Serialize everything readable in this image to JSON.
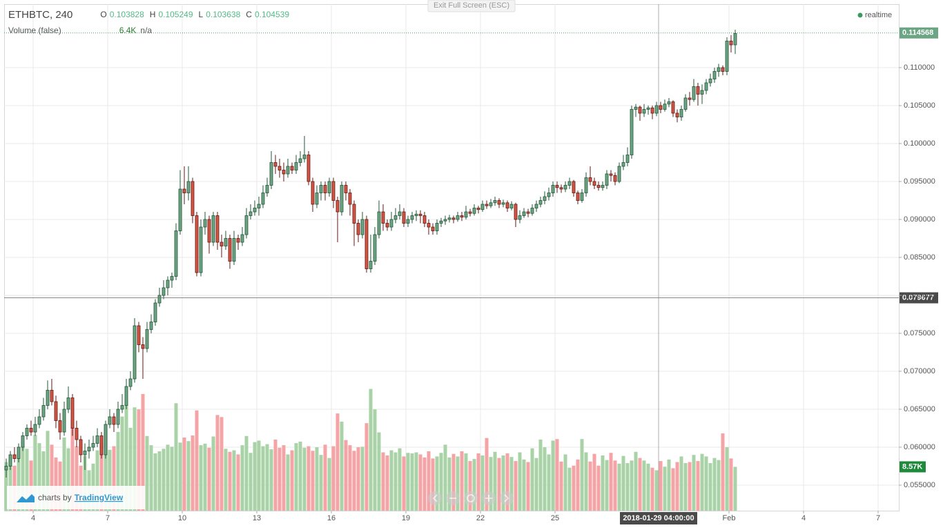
{
  "chart_data": {
    "type": "candlestick",
    "header": {
      "symbol": "ETHBTC, 240",
      "o_label": "O",
      "o": 0.103828,
      "h_label": "H",
      "h": 0.105249,
      "l_label": "L",
      "l": 0.103638,
      "c_label": "C",
      "c": 0.104539,
      "volume_title": "Volume (false)",
      "volume_value": "6.4K",
      "volume_extra": "n/a",
      "realtime": "realtime",
      "exit": "Exit Full Screen (ESC)",
      "brand_prefix": "charts by",
      "brand": "TradingView"
    },
    "xlim": [
      -0.5,
      215.5
    ],
    "xticks": [
      {
        "value": 6.5,
        "label": "4"
      },
      {
        "value": 24.5,
        "label": "7"
      },
      {
        "value": 42.5,
        "label": "10"
      },
      {
        "value": 60.5,
        "label": "13"
      },
      {
        "value": 78.5,
        "label": "16"
      },
      {
        "value": 96.5,
        "label": "19"
      },
      {
        "value": 114.5,
        "label": "22"
      },
      {
        "value": 132.5,
        "label": "25"
      },
      {
        "value": 174.5,
        "label": "Feb"
      },
      {
        "value": 192.5,
        "label": "4"
      },
      {
        "value": 210.5,
        "label": "7"
      }
    ],
    "ylim": [
      0.051636,
      0.118364
    ],
    "yticks": [
      {
        "value": 0.055,
        "label": "0.055000"
      },
      {
        "value": 0.06,
        "label": "0.060000"
      },
      {
        "value": 0.065,
        "label": "0.065000"
      },
      {
        "value": 0.07,
        "label": "0.070000"
      },
      {
        "value": 0.075,
        "label": "0.075000"
      },
      {
        "value": 0.08,
        "label": "0.080000"
      },
      {
        "value": 0.085,
        "label": "0.085000"
      },
      {
        "value": 0.09,
        "label": "0.090000"
      },
      {
        "value": 0.095,
        "label": "0.095000"
      },
      {
        "value": 0.1,
        "label": "0.100000"
      },
      {
        "value": 0.105,
        "label": "0.105000"
      },
      {
        "value": 0.11,
        "label": "0.110000"
      }
    ],
    "y2lim": [
      0,
      99000
    ],
    "grid": true,
    "colors": {
      "up": "#6ba583",
      "up_border": "#225437",
      "down": "#d75442",
      "down_border": "#5b1a13",
      "volume_up": "#a9d3a7",
      "volume_down": "#f5a3a5"
    },
    "last_price": 0.114568,
    "last_volume": {
      "value": 8570,
      "label": "8.57K"
    },
    "crosshair": {
      "x": 157.5,
      "label": "2018-01-29 04:00:00",
      "price": 0.079677
    },
    "ohlc": [
      [
        0.057,
        0.0585,
        0.056,
        0.0575
      ],
      [
        0.0575,
        0.0595,
        0.057,
        0.059
      ],
      [
        0.059,
        0.06,
        0.058,
        0.0585
      ],
      [
        0.0585,
        0.0605,
        0.058,
        0.06
      ],
      [
        0.06,
        0.062,
        0.0595,
        0.0615
      ],
      [
        0.0615,
        0.063,
        0.061,
        0.0625
      ],
      [
        0.0625,
        0.0635,
        0.0615,
        0.062
      ],
      [
        0.062,
        0.064,
        0.0615,
        0.063
      ],
      [
        0.063,
        0.065,
        0.0625,
        0.064
      ],
      [
        0.064,
        0.0665,
        0.0635,
        0.0655
      ],
      [
        0.0655,
        0.0688,
        0.065,
        0.0675
      ],
      [
        0.0675,
        0.069,
        0.0655,
        0.066
      ],
      [
        0.066,
        0.0668,
        0.0625,
        0.0635
      ],
      [
        0.0635,
        0.0645,
        0.061,
        0.062
      ],
      [
        0.062,
        0.066,
        0.0615,
        0.065
      ],
      [
        0.065,
        0.068,
        0.0645,
        0.0665
      ],
      [
        0.0665,
        0.067,
        0.0615,
        0.0625
      ],
      [
        0.0625,
        0.0635,
        0.06,
        0.061
      ],
      [
        0.061,
        0.0615,
        0.058,
        0.059
      ],
      [
        0.059,
        0.0605,
        0.057,
        0.0595
      ],
      [
        0.0595,
        0.061,
        0.0585,
        0.06
      ],
      [
        0.06,
        0.0615,
        0.0595,
        0.0605
      ],
      [
        0.0605,
        0.0625,
        0.06,
        0.0615
      ],
      [
        0.0615,
        0.062,
        0.0585,
        0.059
      ],
      [
        0.059,
        0.0635,
        0.0585,
        0.063
      ],
      [
        0.063,
        0.065,
        0.0625,
        0.064
      ],
      [
        0.064,
        0.0645,
        0.062,
        0.063
      ],
      [
        0.063,
        0.066,
        0.0625,
        0.065
      ],
      [
        0.065,
        0.067,
        0.0645,
        0.0655
      ],
      [
        0.0655,
        0.069,
        0.065,
        0.068
      ],
      [
        0.068,
        0.07,
        0.0675,
        0.069
      ],
      [
        0.069,
        0.077,
        0.0685,
        0.076
      ],
      [
        0.076,
        0.0765,
        0.0725,
        0.0735
      ],
      [
        0.0735,
        0.0745,
        0.069,
        0.073
      ],
      [
        0.073,
        0.0765,
        0.0725,
        0.0755
      ],
      [
        0.0755,
        0.0775,
        0.075,
        0.0765
      ],
      [
        0.0765,
        0.0795,
        0.076,
        0.079
      ],
      [
        0.079,
        0.081,
        0.0785,
        0.08
      ],
      [
        0.08,
        0.082,
        0.0795,
        0.081
      ],
      [
        0.081,
        0.0825,
        0.08,
        0.082
      ],
      [
        0.082,
        0.083,
        0.081,
        0.0825
      ],
      [
        0.0825,
        0.0895,
        0.082,
        0.0885
      ],
      [
        0.0885,
        0.0965,
        0.088,
        0.094
      ],
      [
        0.094,
        0.097,
        0.092,
        0.0935
      ],
      [
        0.0935,
        0.097,
        0.0925,
        0.095
      ],
      [
        0.095,
        0.0955,
        0.0895,
        0.0905
      ],
      [
        0.0905,
        0.091,
        0.0825,
        0.083
      ],
      [
        0.083,
        0.09,
        0.0825,
        0.089
      ],
      [
        0.089,
        0.091,
        0.088,
        0.09
      ],
      [
        0.09,
        0.0905,
        0.0855,
        0.087
      ],
      [
        0.087,
        0.091,
        0.0865,
        0.0905
      ],
      [
        0.0905,
        0.091,
        0.086,
        0.087
      ],
      [
        0.087,
        0.088,
        0.085,
        0.0865
      ],
      [
        0.0865,
        0.0885,
        0.086,
        0.0875
      ],
      [
        0.0875,
        0.088,
        0.0835,
        0.0845
      ],
      [
        0.0845,
        0.0885,
        0.084,
        0.0875
      ],
      [
        0.0875,
        0.088,
        0.086,
        0.087
      ],
      [
        0.087,
        0.089,
        0.0865,
        0.088
      ],
      [
        0.088,
        0.0915,
        0.0875,
        0.0905
      ],
      [
        0.0905,
        0.092,
        0.09,
        0.091
      ],
      [
        0.091,
        0.0925,
        0.0905,
        0.0915
      ],
      [
        0.0915,
        0.093,
        0.0905,
        0.092
      ],
      [
        0.092,
        0.0945,
        0.0915,
        0.0935
      ],
      [
        0.0935,
        0.0955,
        0.093,
        0.0945
      ],
      [
        0.0945,
        0.099,
        0.094,
        0.0975
      ],
      [
        0.0975,
        0.0985,
        0.096,
        0.097
      ],
      [
        0.097,
        0.098,
        0.0955,
        0.0965
      ],
      [
        0.0965,
        0.0975,
        0.095,
        0.096
      ],
      [
        0.096,
        0.098,
        0.0955,
        0.097
      ],
      [
        0.097,
        0.0975,
        0.096,
        0.0965
      ],
      [
        0.0965,
        0.0985,
        0.096,
        0.0975
      ],
      [
        0.0975,
        0.099,
        0.097,
        0.098
      ],
      [
        0.098,
        0.101,
        0.0975,
        0.0985
      ],
      [
        0.0985,
        0.099,
        0.0945,
        0.095
      ],
      [
        0.095,
        0.0955,
        0.091,
        0.092
      ],
      [
        0.092,
        0.0945,
        0.0915,
        0.0935
      ],
      [
        0.0935,
        0.095,
        0.0925,
        0.0945
      ],
      [
        0.0945,
        0.095,
        0.0925,
        0.0935
      ],
      [
        0.0935,
        0.0955,
        0.093,
        0.095
      ],
      [
        0.095,
        0.0955,
        0.0915,
        0.0925
      ],
      [
        0.0925,
        0.093,
        0.087,
        0.091
      ],
      [
        0.091,
        0.095,
        0.0905,
        0.0945
      ],
      [
        0.0945,
        0.095,
        0.0925,
        0.0935
      ],
      [
        0.0935,
        0.094,
        0.0905,
        0.092
      ],
      [
        0.092,
        0.0925,
        0.0865,
        0.0895
      ],
      [
        0.0895,
        0.09,
        0.087,
        0.088
      ],
      [
        0.088,
        0.091,
        0.0875,
        0.09
      ],
      [
        0.09,
        0.0905,
        0.083,
        0.0835
      ],
      [
        0.0835,
        0.088,
        0.083,
        0.0845
      ],
      [
        0.0845,
        0.089,
        0.084,
        0.088
      ],
      [
        0.088,
        0.0925,
        0.0875,
        0.091
      ],
      [
        0.091,
        0.092,
        0.0885,
        0.0895
      ],
      [
        0.0895,
        0.09,
        0.0885,
        0.089
      ],
      [
        0.089,
        0.091,
        0.0885,
        0.09
      ],
      [
        0.09,
        0.0915,
        0.0895,
        0.0905
      ],
      [
        0.0905,
        0.092,
        0.09,
        0.091
      ],
      [
        0.091,
        0.0915,
        0.089,
        0.0895
      ],
      [
        0.0895,
        0.0905,
        0.089,
        0.09
      ],
      [
        0.09,
        0.091,
        0.0895,
        0.0905
      ],
      [
        0.0905,
        0.0912,
        0.0898,
        0.0907
      ],
      [
        0.0907,
        0.0912,
        0.0895,
        0.0905
      ],
      [
        0.0905,
        0.091,
        0.089,
        0.0895
      ],
      [
        0.0895,
        0.09,
        0.088,
        0.089
      ],
      [
        0.089,
        0.0895,
        0.088,
        0.0885
      ],
      [
        0.0885,
        0.09,
        0.088,
        0.0895
      ],
      [
        0.0895,
        0.0902,
        0.089,
        0.0898
      ],
      [
        0.0898,
        0.0905,
        0.0893,
        0.09
      ],
      [
        0.09,
        0.0906,
        0.0896,
        0.0902
      ],
      [
        0.0902,
        0.0905,
        0.0895,
        0.09
      ],
      [
        0.09,
        0.091,
        0.0897,
        0.0905
      ],
      [
        0.0905,
        0.091,
        0.0898,
        0.0903
      ],
      [
        0.0903,
        0.0918,
        0.09,
        0.091
      ],
      [
        0.091,
        0.0914,
        0.0904,
        0.0908
      ],
      [
        0.0908,
        0.092,
        0.0905,
        0.0915
      ],
      [
        0.0915,
        0.0918,
        0.0908,
        0.0913
      ],
      [
        0.0913,
        0.0925,
        0.091,
        0.092
      ],
      [
        0.092,
        0.0925,
        0.0914,
        0.0918
      ],
      [
        0.0918,
        0.0927,
        0.0915,
        0.0922
      ],
      [
        0.0922,
        0.093,
        0.0918,
        0.0925
      ],
      [
        0.0925,
        0.0928,
        0.0915,
        0.092
      ],
      [
        0.092,
        0.0926,
        0.0916,
        0.0922
      ],
      [
        0.0922,
        0.0925,
        0.091,
        0.0915
      ],
      [
        0.0915,
        0.0924,
        0.0912,
        0.092
      ],
      [
        0.092,
        0.0922,
        0.089,
        0.09
      ],
      [
        0.09,
        0.0912,
        0.0895,
        0.0905
      ],
      [
        0.0905,
        0.0915,
        0.0902,
        0.091
      ],
      [
        0.091,
        0.0914,
        0.0903,
        0.0908
      ],
      [
        0.0908,
        0.092,
        0.0905,
        0.0915
      ],
      [
        0.0915,
        0.0925,
        0.091,
        0.092
      ],
      [
        0.092,
        0.093,
        0.0916,
        0.0925
      ],
      [
        0.0925,
        0.0937,
        0.092,
        0.093
      ],
      [
        0.093,
        0.0942,
        0.0925,
        0.0935
      ],
      [
        0.0935,
        0.095,
        0.093,
        0.0945
      ],
      [
        0.0945,
        0.095,
        0.0935,
        0.0942
      ],
      [
        0.0942,
        0.0946,
        0.0935,
        0.094
      ],
      [
        0.094,
        0.095,
        0.0936,
        0.0945
      ],
      [
        0.0945,
        0.0955,
        0.094,
        0.095
      ],
      [
        0.095,
        0.0952,
        0.093,
        0.0935
      ],
      [
        0.0935,
        0.0938,
        0.092,
        0.0925
      ],
      [
        0.0925,
        0.094,
        0.0922,
        0.0935
      ],
      [
        0.0935,
        0.0962,
        0.093,
        0.0955
      ],
      [
        0.0955,
        0.097,
        0.0945,
        0.095
      ],
      [
        0.095,
        0.0955,
        0.094,
        0.0945
      ],
      [
        0.0945,
        0.095,
        0.0938,
        0.0942
      ],
      [
        0.0942,
        0.095,
        0.0938,
        0.0945
      ],
      [
        0.0945,
        0.0965,
        0.094,
        0.096
      ],
      [
        0.096,
        0.0965,
        0.095,
        0.0958
      ],
      [
        0.0958,
        0.0962,
        0.0945,
        0.095
      ],
      [
        0.095,
        0.0975,
        0.0948,
        0.097
      ],
      [
        0.097,
        0.0985,
        0.0965,
        0.0975
      ],
      [
        0.0975,
        0.0995,
        0.097,
        0.0985
      ],
      [
        0.0985,
        0.105,
        0.098,
        0.1045
      ],
      [
        0.1045,
        0.1052,
        0.1035,
        0.1048
      ],
      [
        0.1048,
        0.105,
        0.103,
        0.104
      ],
      [
        0.104,
        0.1052,
        0.1035,
        0.1045
      ],
      [
        0.1045,
        0.105,
        0.1038,
        0.1047
      ],
      [
        0.1047,
        0.105,
        0.1032,
        0.104
      ],
      [
        0.104,
        0.1055,
        0.1036,
        0.105
      ],
      [
        0.105,
        0.1055,
        0.104,
        0.1045
      ],
      [
        0.1045,
        0.1058,
        0.1042,
        0.1052
      ],
      [
        0.1052,
        0.106,
        0.1048,
        0.1055
      ],
      [
        0.1055,
        0.1057,
        0.1035,
        0.104
      ],
      [
        0.104,
        0.1045,
        0.1028,
        0.1035
      ],
      [
        0.1035,
        0.105,
        0.103,
        0.1045
      ],
      [
        0.1045,
        0.1065,
        0.1042,
        0.106
      ],
      [
        0.106,
        0.1068,
        0.105,
        0.1058
      ],
      [
        0.1058,
        0.1085,
        0.1055,
        0.1075
      ],
      [
        0.1075,
        0.108,
        0.105,
        0.1065
      ],
      [
        0.1065,
        0.1078,
        0.1052,
        0.107
      ],
      [
        0.107,
        0.1085,
        0.1065,
        0.108
      ],
      [
        0.108,
        0.1092,
        0.1075,
        0.1085
      ],
      [
        0.1085,
        0.11,
        0.108,
        0.1095
      ],
      [
        0.1095,
        0.1105,
        0.1088,
        0.11
      ],
      [
        0.11,
        0.1103,
        0.109,
        0.1095
      ],
      [
        0.1095,
        0.114,
        0.109,
        0.1135
      ],
      [
        0.1135,
        0.1143,
        0.112,
        0.113
      ],
      [
        0.113,
        0.115,
        0.1118,
        0.1145
      ]
    ],
    "volume": [
      9500,
      10200,
      8800,
      11500,
      13400,
      12100,
      9800,
      14800,
      13200,
      11600,
      15600,
      12900,
      10400,
      9600,
      14300,
      12200,
      17800,
      12600,
      8800,
      10700,
      7900,
      9200,
      11800,
      13200,
      16100,
      11900,
      12600,
      15400,
      18400,
      21500,
      16200,
      20200,
      19800,
      22800,
      14600,
      12800,
      11200,
      11600,
      12100,
      12900,
      12500,
      21000,
      13300,
      14300,
      13600,
      14700,
      19600,
      12800,
      13100,
      12300,
      14500,
      18700,
      18300,
      12100,
      11500,
      11800,
      11000,
      12800,
      14600,
      11300,
      13400,
      13700,
      12600,
      13000,
      12000,
      13900,
      12300,
      12800,
      11000,
      11800,
      13200,
      13500,
      12300,
      12600,
      11700,
      12400,
      10900,
      12900,
      10300,
      12600,
      19000,
      17400,
      13800,
      12800,
      11700,
      12400,
      12500,
      17100,
      23800,
      19800,
      15300,
      11400,
      10800,
      11800,
      11400,
      12200,
      10600,
      11300,
      11200,
      11400,
      11000,
      10400,
      11600,
      10200,
      10600,
      11300,
      12900,
      10400,
      11100,
      10600,
      11600,
      11200,
      9700,
      10100,
      11200,
      10800,
      14200,
      10500,
      11500,
      10300,
      10800,
      11200,
      10500,
      9700,
      11400,
      10000,
      9500,
      12200,
      10300,
      13900,
      12400,
      11000,
      13700,
      14000,
      9600,
      11000,
      8400,
      8800,
      10000,
      14000,
      11400,
      9600,
      11100,
      8800,
      10800,
      9900,
      11300,
      9800,
      9200,
      10700,
      9300,
      9800,
      11500,
      10300,
      9800,
      9200,
      8400,
      7900,
      9700,
      8600,
      10000,
      8300,
      9500,
      10600,
      9300,
      9500,
      10900,
      9700,
      11100,
      10600,
      9300,
      10300,
      9900,
      15100,
      12400,
      10200,
      8570
    ]
  }
}
